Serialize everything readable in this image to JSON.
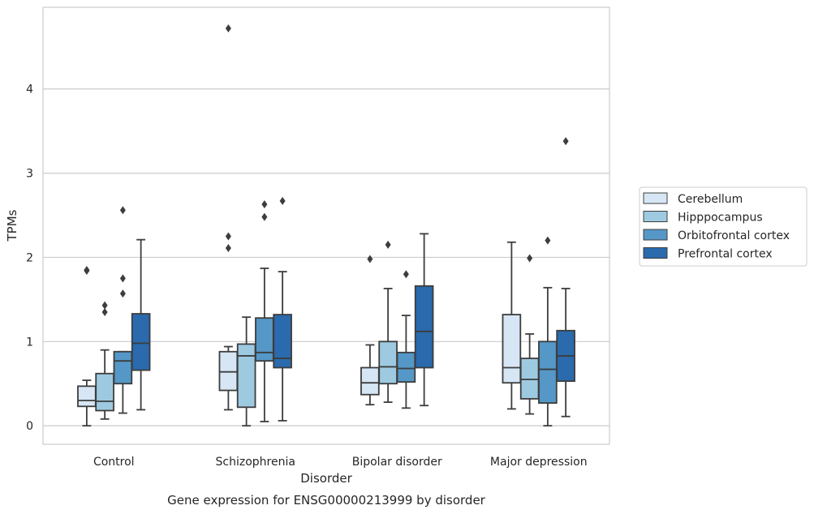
{
  "chart_data": {
    "type": "box",
    "title": "Gene expression for ENSG00000213999 by disorder",
    "xlabel": "Disorder",
    "ylabel": "TPMs",
    "ylim": [
      -0.22,
      4.97
    ],
    "yticks": [
      0,
      1,
      2,
      3,
      4
    ],
    "grid": true,
    "legend_placement": "right",
    "categories": [
      "Control",
      "Schizophrenia",
      "Bipolar disorder",
      "Major depression"
    ],
    "series": [
      {
        "name": "Cerebellum",
        "color": "#d6e6f4",
        "boxes": [
          {
            "whisker_low": 0.0,
            "q1": 0.23,
            "median": 0.3,
            "q3": 0.47,
            "whisker_high": 0.54,
            "outliers": [
              1.85,
              1.84
            ]
          },
          {
            "whisker_low": 0.19,
            "q1": 0.42,
            "median": 0.64,
            "q3": 0.88,
            "whisker_high": 0.94,
            "outliers": [
              4.72,
              2.25,
              2.11
            ]
          },
          {
            "whisker_low": 0.25,
            "q1": 0.37,
            "median": 0.51,
            "q3": 0.69,
            "whisker_high": 0.96,
            "outliers": [
              1.98
            ]
          },
          {
            "whisker_low": 0.2,
            "q1": 0.51,
            "median": 0.69,
            "q3": 1.32,
            "whisker_high": 2.18,
            "outliers": []
          }
        ]
      },
      {
        "name": "Hipppocampus",
        "color": "#9ecae1",
        "boxes": [
          {
            "whisker_low": 0.08,
            "q1": 0.18,
            "median": 0.29,
            "q3": 0.62,
            "whisker_high": 0.9,
            "outliers": [
              1.43,
              1.35
            ]
          },
          {
            "whisker_low": 0.0,
            "q1": 0.22,
            "median": 0.83,
            "q3": 0.97,
            "whisker_high": 1.29,
            "outliers": []
          },
          {
            "whisker_low": 0.28,
            "q1": 0.5,
            "median": 0.7,
            "q3": 1.0,
            "whisker_high": 1.63,
            "outliers": [
              2.15
            ]
          },
          {
            "whisker_low": 0.14,
            "q1": 0.32,
            "median": 0.55,
            "q3": 0.8,
            "whisker_high": 1.09,
            "outliers": [
              1.99
            ]
          }
        ]
      },
      {
        "name": "Orbitofrontal cortex",
        "color": "#5597c7",
        "boxes": [
          {
            "whisker_low": 0.15,
            "q1": 0.5,
            "median": 0.77,
            "q3": 0.88,
            "whisker_high": 0.88,
            "outliers": [
              2.56,
              1.75,
              1.57
            ]
          },
          {
            "whisker_low": 0.05,
            "q1": 0.77,
            "median": 0.87,
            "q3": 1.28,
            "whisker_high": 1.87,
            "outliers": [
              2.63,
              2.48
            ]
          },
          {
            "whisker_low": 0.21,
            "q1": 0.52,
            "median": 0.68,
            "q3": 0.87,
            "whisker_high": 1.31,
            "outliers": [
              1.8
            ]
          },
          {
            "whisker_low": 0.0,
            "q1": 0.27,
            "median": 0.67,
            "q3": 1.0,
            "whisker_high": 1.64,
            "outliers": [
              2.2
            ]
          }
        ]
      },
      {
        "name": "Prefrontal cortex",
        "color": "#2a6aad",
        "boxes": [
          {
            "whisker_low": 0.19,
            "q1": 0.66,
            "median": 0.98,
            "q3": 1.33,
            "whisker_high": 2.21,
            "outliers": []
          },
          {
            "whisker_low": 0.06,
            "q1": 0.69,
            "median": 0.8,
            "q3": 1.32,
            "whisker_high": 1.83,
            "outliers": [
              2.67
            ]
          },
          {
            "whisker_low": 0.24,
            "q1": 0.69,
            "median": 1.12,
            "q3": 1.66,
            "whisker_high": 2.28,
            "outliers": []
          },
          {
            "whisker_low": 0.11,
            "q1": 0.53,
            "median": 0.83,
            "q3": 1.13,
            "whisker_high": 1.63,
            "outliers": [
              3.38
            ]
          }
        ]
      }
    ]
  }
}
